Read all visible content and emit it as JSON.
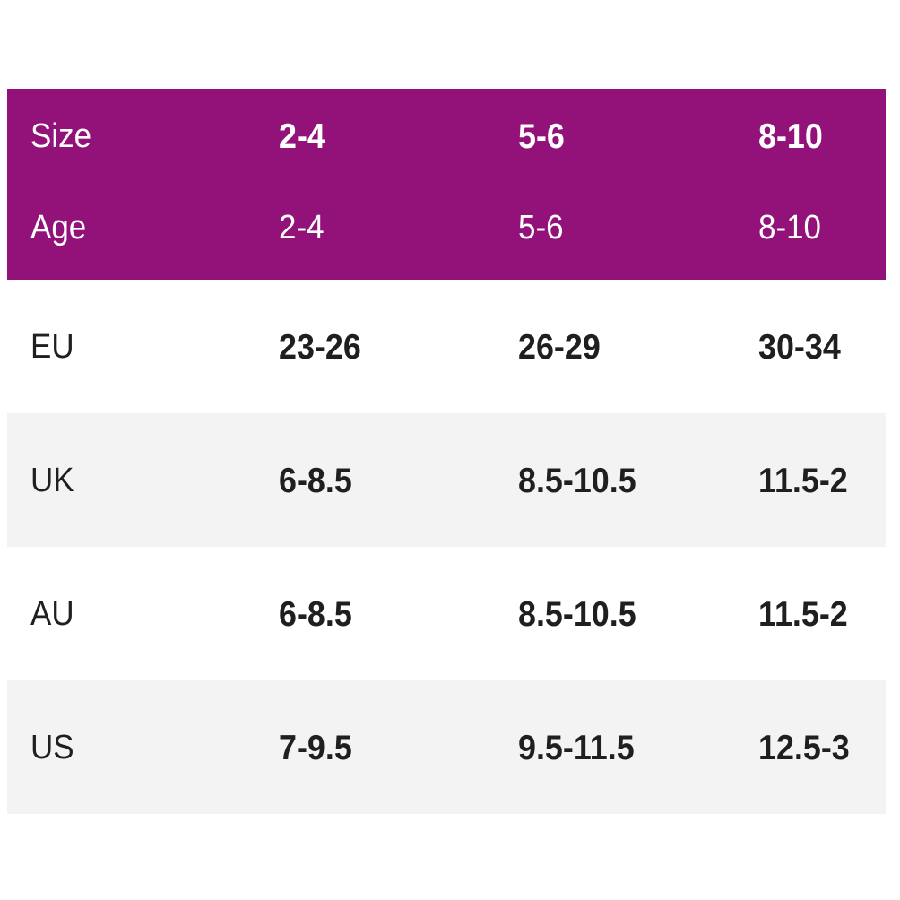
{
  "header": {
    "size_label": "Size",
    "sizes": [
      "2-4",
      "5-6",
      "8-10"
    ],
    "age_label": "Age",
    "ages": [
      "2-4",
      "5-6",
      "8-10"
    ],
    "background_color": "#921279"
  },
  "rows": [
    {
      "label": "EU",
      "values": [
        "23-26",
        "26-29",
        "30-34"
      ]
    },
    {
      "label": "UK",
      "values": [
        "6-8.5",
        "8.5-10.5",
        "11.5-2"
      ]
    },
    {
      "label": "AU",
      "values": [
        "6-8.5",
        "8.5-10.5",
        "11.5-2"
      ]
    },
    {
      "label": "US",
      "values": [
        "7-9.5",
        "9.5-11.5",
        "12.5-3"
      ]
    }
  ],
  "stripe_color": "#f3f3f3"
}
